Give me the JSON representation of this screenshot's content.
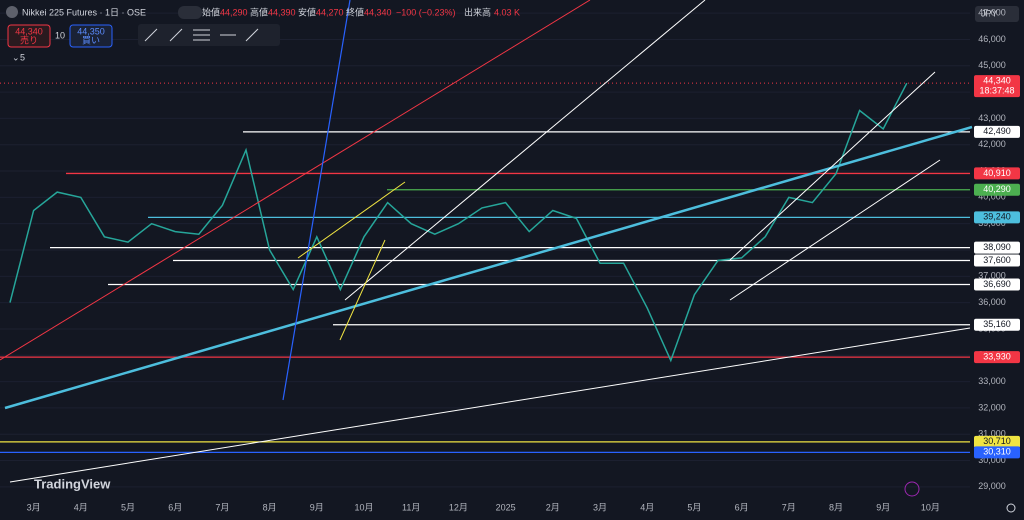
{
  "header": {
    "symbol": "Nikkei 225 Futures · 1日 · OSE",
    "open_label": "始値",
    "open": "44,290",
    "high_label": "高値",
    "high": "44,390",
    "low_label": "安値",
    "low": "44,270",
    "close_label": "終値",
    "close": "44,340",
    "change": "−100 (−0.23%)",
    "volume_label": "出来高",
    "volume": "4.03 K"
  },
  "order_panel": {
    "sell_price": "44,340",
    "sell": "売り",
    "quantity": "10",
    "buy_price": "44,350",
    "buy": "買い",
    "indicator": "5"
  },
  "currency": "JPY",
  "brand": "TradingView",
  "chart_data": {
    "type": "line",
    "color": "#26a69a",
    "categories": [
      null,
      "3月",
      null,
      "4月",
      null,
      "5月",
      null,
      "6月",
      null,
      "7月",
      null,
      "8月",
      null,
      "9月",
      null,
      "10月",
      null,
      "11月",
      null,
      "12月",
      null,
      "2025",
      null,
      "2月",
      null,
      "3月",
      null,
      "4月",
      null,
      "5月",
      null,
      "6月",
      null,
      "7月",
      null,
      "8月",
      null,
      "9月",
      null,
      "10月"
    ],
    "values": [
      36000,
      39500,
      40200,
      40000,
      38500,
      38300,
      39000,
      38700,
      38600,
      39700,
      41800,
      38000,
      36500,
      38500,
      36500,
      38500,
      39800,
      39000,
      38600,
      39000,
      39600,
      39800,
      38700,
      39500,
      39200,
      37500,
      37500,
      35800,
      33800,
      36300,
      37600,
      37700,
      38500,
      40000,
      39800,
      40900,
      43300,
      42600,
      44340,
      null
    ],
    "ylim": [
      28500,
      47500
    ],
    "yticks": [
      {
        "value": 29000,
        "label": "29,000"
      },
      {
        "value": 30000,
        "label": "30,000"
      },
      {
        "value": 31000,
        "label": "31,000"
      },
      {
        "value": 32000,
        "label": "32,000"
      },
      {
        "value": 33000,
        "label": "33,000"
      },
      {
        "value": 34000,
        "label": "34,000"
      },
      {
        "value": 35000,
        "label": "35,000"
      },
      {
        "value": 36000,
        "label": "36,000"
      },
      {
        "value": 37000,
        "label": "37,000"
      },
      {
        "value": 38000,
        "label": "38,000"
      },
      {
        "value": 39000,
        "label": "39,000"
      },
      {
        "value": 40000,
        "label": "40,000"
      },
      {
        "value": 41000,
        "label": "41,000"
      },
      {
        "value": 42000,
        "label": "42,000"
      },
      {
        "value": 43000,
        "label": "43,000"
      },
      {
        "value": 44000,
        "label": "44,000"
      },
      {
        "value": 45000,
        "label": "45,000"
      },
      {
        "value": 46000,
        "label": "46,000"
      },
      {
        "value": 47000,
        "label": "47,000"
      }
    ],
    "grid": true,
    "levels": [
      {
        "value": 42490,
        "label": "42,490",
        "color": "#ffffff"
      },
      {
        "value": 40910,
        "label": "40,910",
        "color": "#f23645"
      },
      {
        "value": 40290,
        "label": "40,290",
        "color": "#4caf50"
      },
      {
        "value": 39240,
        "label": "39,240",
        "color": "#4dbedd"
      },
      {
        "value": 38090,
        "label": "38,090",
        "color": "#ffffff"
      },
      {
        "value": 37600,
        "label": "37,600",
        "color": "#ffffff"
      },
      {
        "value": 36690,
        "label": "36,690",
        "color": "#ffffff"
      },
      {
        "value": 35160,
        "label": "35,160",
        "color": "#ffffff"
      },
      {
        "value": 33930,
        "label": "33,930",
        "color": "#f23645"
      },
      {
        "value": 30710,
        "label": "30,710",
        "color": "#f0e442"
      },
      {
        "value": 30310,
        "label": "30,310",
        "color": "#2962ff"
      }
    ],
    "current_price": {
      "value": 44340,
      "label": "44,340",
      "countdown": "18:37:48",
      "color": "#f23645"
    }
  }
}
